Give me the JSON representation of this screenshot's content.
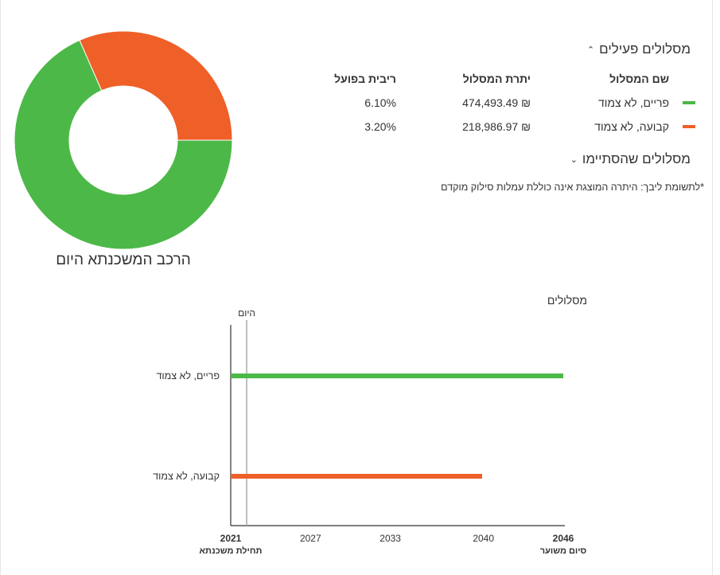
{
  "donut": {
    "title": "הרכב המשכנתא היום",
    "segments": [
      {
        "value": 474493.49,
        "color": "#4cb848"
      },
      {
        "value": 218986.97,
        "color": "#ef5f28"
      }
    ]
  },
  "active_section": {
    "title": "מסלולים פעילים",
    "columns": {
      "name": "שם המסלול",
      "balance": "יתרת המסלול",
      "rate": "ריבית בפועל"
    },
    "rows": [
      {
        "name": "פריים, לא צמוד",
        "balance": "₪ 474,493.49",
        "rate": "6.10%",
        "color": "#4cb848"
      },
      {
        "name": "קבועה, לא צמוד",
        "balance": "₪ 218,986.97",
        "rate": "3.20%",
        "color": "#ef5f28"
      }
    ]
  },
  "ended_section": {
    "title": "מסלולים שהסתיימו"
  },
  "note": "*לתשומת ליבך: היתרה המוצגת אינה כוללת עמלות סילוק מוקדם",
  "chart_data": {
    "type": "bar",
    "title": "מסלולים",
    "today_label": "היום",
    "today_year": 2022.2,
    "xlim": [
      2021,
      2046
    ],
    "x_ticks": [
      {
        "year": 2021,
        "label": "2021",
        "sub": "תחילת משכנתא",
        "bold": true
      },
      {
        "year": 2027,
        "label": "2027",
        "sub": "",
        "bold": false
      },
      {
        "year": 2033,
        "label": "2033",
        "sub": "",
        "bold": false
      },
      {
        "year": 2040,
        "label": "2040",
        "sub": "",
        "bold": false
      },
      {
        "year": 2046,
        "label": "2046",
        "sub": "סיום משוער",
        "bold": true
      }
    ],
    "series": [
      {
        "name": "פריים, לא צמוד",
        "start": 2021,
        "end": 2046,
        "color": "#4cb848"
      },
      {
        "name": "קבועה, לא צמוד",
        "start": 2021,
        "end": 2039.9,
        "color": "#ef5f28"
      }
    ]
  }
}
